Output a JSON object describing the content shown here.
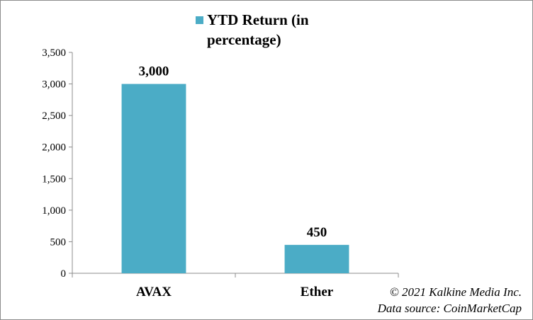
{
  "chart_data": {
    "type": "bar",
    "categories": [
      "AVAX",
      "Ether"
    ],
    "series": [
      {
        "name": "YTD Return (in percentage)",
        "values": [
          3000,
          450
        ],
        "data_labels": [
          "3,000",
          "450"
        ]
      }
    ],
    "legend": {
      "label_line1": "YTD Return (in",
      "label_line2": "percentage)",
      "placement": "top"
    },
    "ylim": [
      0,
      3500
    ],
    "yticks": [
      0,
      500,
      1000,
      1500,
      2000,
      2500,
      3000,
      3500
    ],
    "ytick_labels": [
      "0",
      "500",
      "1,000",
      "1,500",
      "2,000",
      "2,500",
      "3,000",
      "3,500"
    ],
    "grid": false,
    "bar_color": "#4bacc6"
  },
  "footer": {
    "copyright": "© 2021 Kalkine Media Inc.",
    "source": "Data source:  CoinMarketCap"
  }
}
